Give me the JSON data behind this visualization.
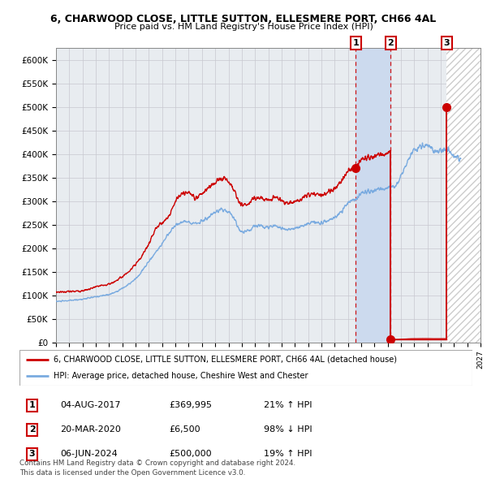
{
  "title_line1": "6, CHARWOOD CLOSE, LITTLE SUTTON, ELLESMERE PORT, CH66 4AL",
  "title_line2": "Price paid vs. HM Land Registry's House Price Index (HPI)",
  "ylabel_ticks": [
    "£0",
    "£50K",
    "£100K",
    "£150K",
    "£200K",
    "£250K",
    "£300K",
    "£350K",
    "£400K",
    "£450K",
    "£500K",
    "£550K",
    "£600K"
  ],
  "ytick_values": [
    0,
    50000,
    100000,
    150000,
    200000,
    250000,
    300000,
    350000,
    400000,
    450000,
    500000,
    550000,
    600000
  ],
  "x_start_year": 1995,
  "x_end_year": 2027,
  "hpi_color": "#7aabe0",
  "price_color": "#cc0000",
  "t1_year": 2017.59,
  "t1_price": 369995,
  "t2_year": 2020.22,
  "t2_price": 6500,
  "t3_year": 2024.43,
  "t3_price": 500000,
  "legend_line1": "6, CHARWOOD CLOSE, LITTLE SUTTON, ELLESMERE PORT, CH66 4AL (detached house)",
  "legend_line2": "HPI: Average price, detached house, Cheshire West and Chester",
  "table_rows": [
    [
      "1",
      "04-AUG-2017",
      "£369,995",
      "21% ↑ HPI"
    ],
    [
      "2",
      "20-MAR-2020",
      "£6,500",
      "98% ↓ HPI"
    ],
    [
      "3",
      "06-JUN-2024",
      "£500,000",
      "19% ↑ HPI"
    ]
  ],
  "footer": "Contains HM Land Registry data © Crown copyright and database right 2024.\nThis data is licensed under the Open Government Licence v3.0.",
  "chart_bg": "#e8ecf0",
  "grid_color": "#c8c8d0",
  "blue_shade_color": "#ccdaee",
  "hatch_color": "#cccccc"
}
